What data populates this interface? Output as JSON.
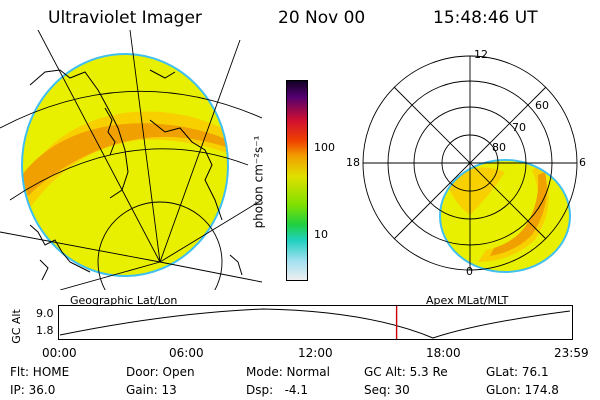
{
  "header": {
    "title": "Ultraviolet Imager",
    "date": "20 Nov 00",
    "time": "15:48:46 UT"
  },
  "colorbar": {
    "unit_label": "photon cm⁻²s⁻¹",
    "ticks": [
      "100",
      "10"
    ]
  },
  "polar_plot": {
    "clock_labels": [
      "12",
      "6",
      "0",
      "18"
    ],
    "lat_labels": [
      "60",
      "70",
      "80"
    ]
  },
  "timeline": {
    "left_caption": "Geographic Lat/Lon",
    "right_caption": "Apex MLat/MLT",
    "y_axis_label": "GC Alt",
    "y_max": "9.0",
    "y_min": "1.8",
    "time_ticks": [
      "00:00",
      "06:00",
      "12:00",
      "18:00",
      "23:59"
    ],
    "current_time_fraction": 0.66
  },
  "info": {
    "rows": [
      [
        "Flt: HOME",
        "Door: Open",
        "Mode: Normal",
        "GC Alt: 5.3 Re",
        "GLat: 76.1"
      ],
      [
        "IP: 36.0",
        "Gain: 13",
        "Dsp:   -4.1",
        "Seq: 30",
        "GLon: 174.8"
      ]
    ]
  },
  "colors": {
    "aurora_field": "#e8f000",
    "aurora_band": "#f0a000",
    "edge": "#40c0f0",
    "marker": "#cc0000"
  }
}
